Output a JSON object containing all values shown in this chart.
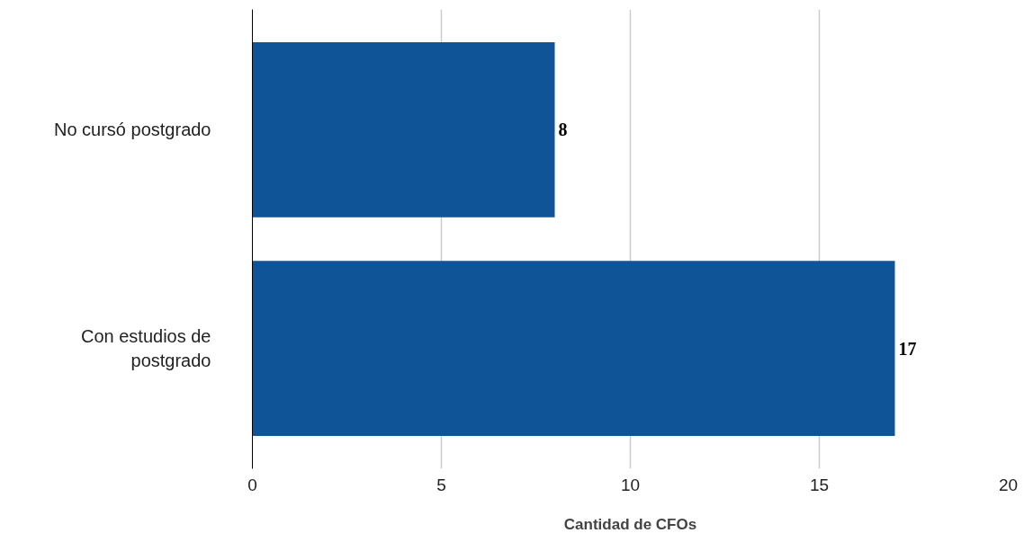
{
  "chart_data": {
    "type": "bar",
    "orientation": "horizontal",
    "xlabel": "Cantidad de CFOs",
    "categories": [
      "No cursó postgrado",
      "Con estudios de postgrado"
    ],
    "values": [
      8,
      17
    ],
    "color": "#0f5496",
    "xlim": [
      0,
      20
    ],
    "xticks": [
      0,
      5,
      10,
      15,
      20
    ],
    "grid": "x",
    "data_labels": true
  }
}
